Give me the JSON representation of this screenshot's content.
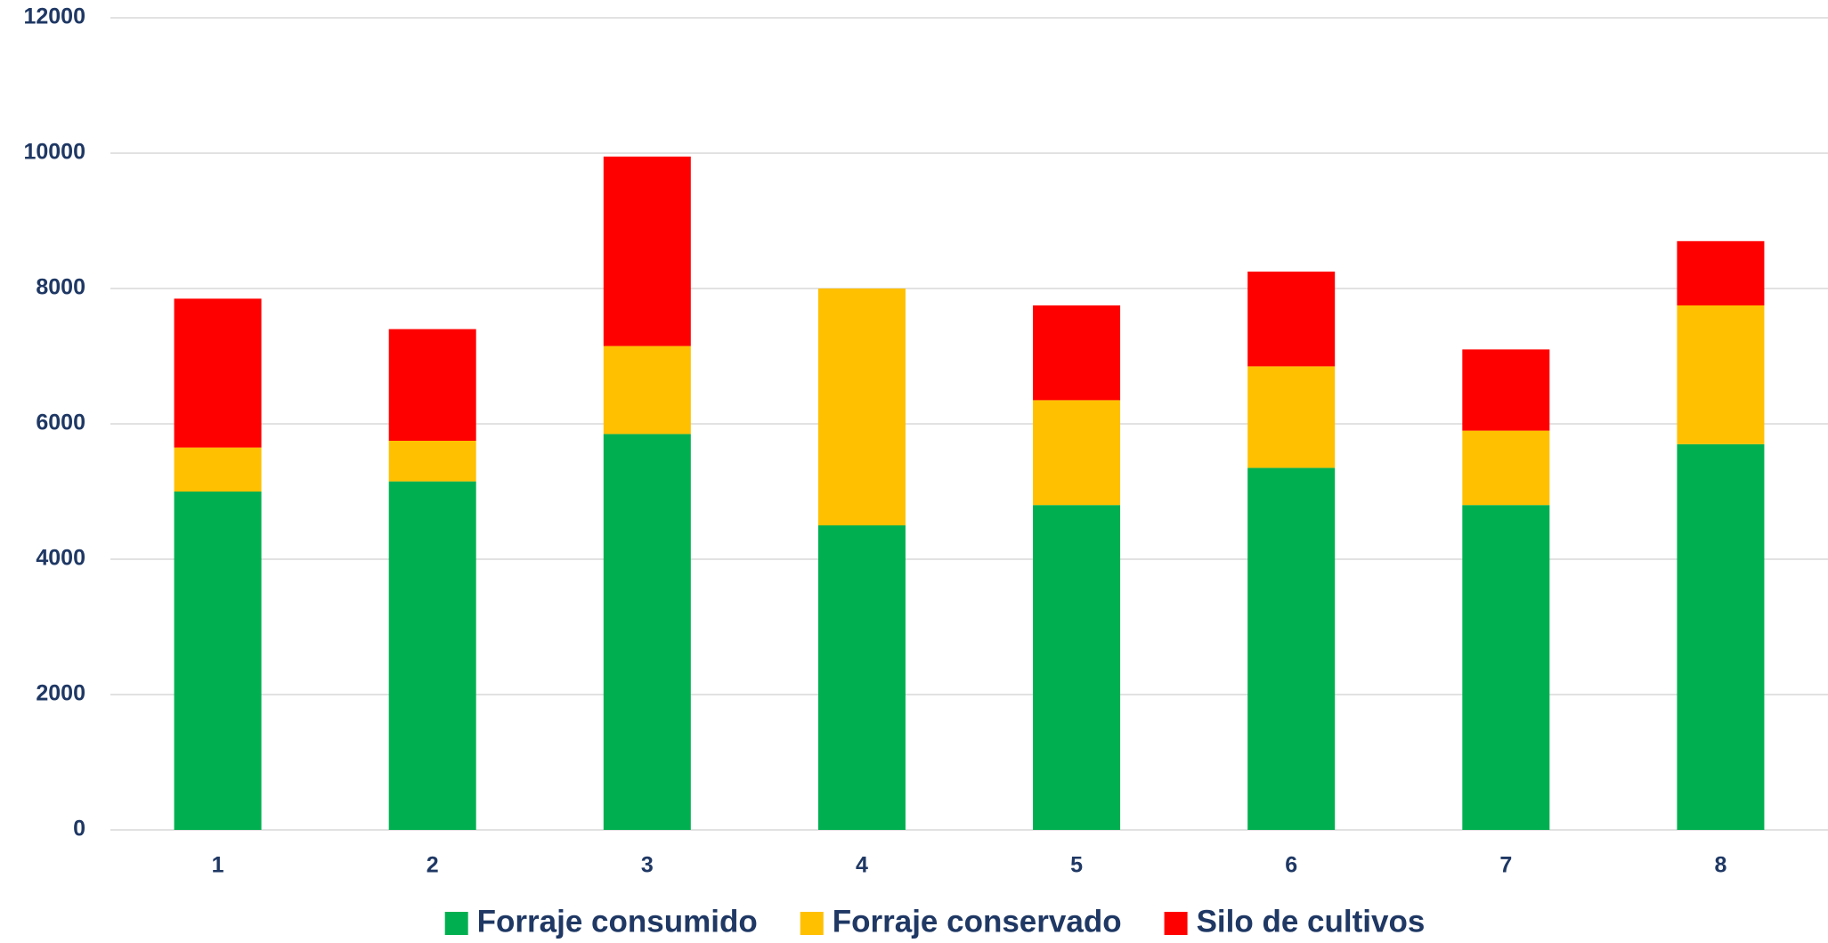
{
  "chart_data": {
    "type": "stacked_bar",
    "categories": [
      "1",
      "2",
      "3",
      "4",
      "5",
      "6",
      "7",
      "8"
    ],
    "series": [
      {
        "name": "Forraje consumido",
        "color": "#00b050",
        "values": [
          5000,
          5150,
          5850,
          4500,
          4800,
          5350,
          4800,
          5700
        ]
      },
      {
        "name": "Forraje conservado",
        "color": "#ffc000",
        "values": [
          650,
          600,
          1300,
          3500,
          1550,
          1500,
          1100,
          2050
        ]
      },
      {
        "name": "Silo de cultivos",
        "color": "#ff0000",
        "values": [
          2200,
          1650,
          2800,
          0,
          1400,
          1400,
          1200,
          950
        ]
      }
    ],
    "ylim": [
      0,
      12000
    ],
    "yticks": [
      0,
      2000,
      4000,
      6000,
      8000,
      10000,
      12000
    ],
    "grid": true,
    "legend": "bottom"
  }
}
